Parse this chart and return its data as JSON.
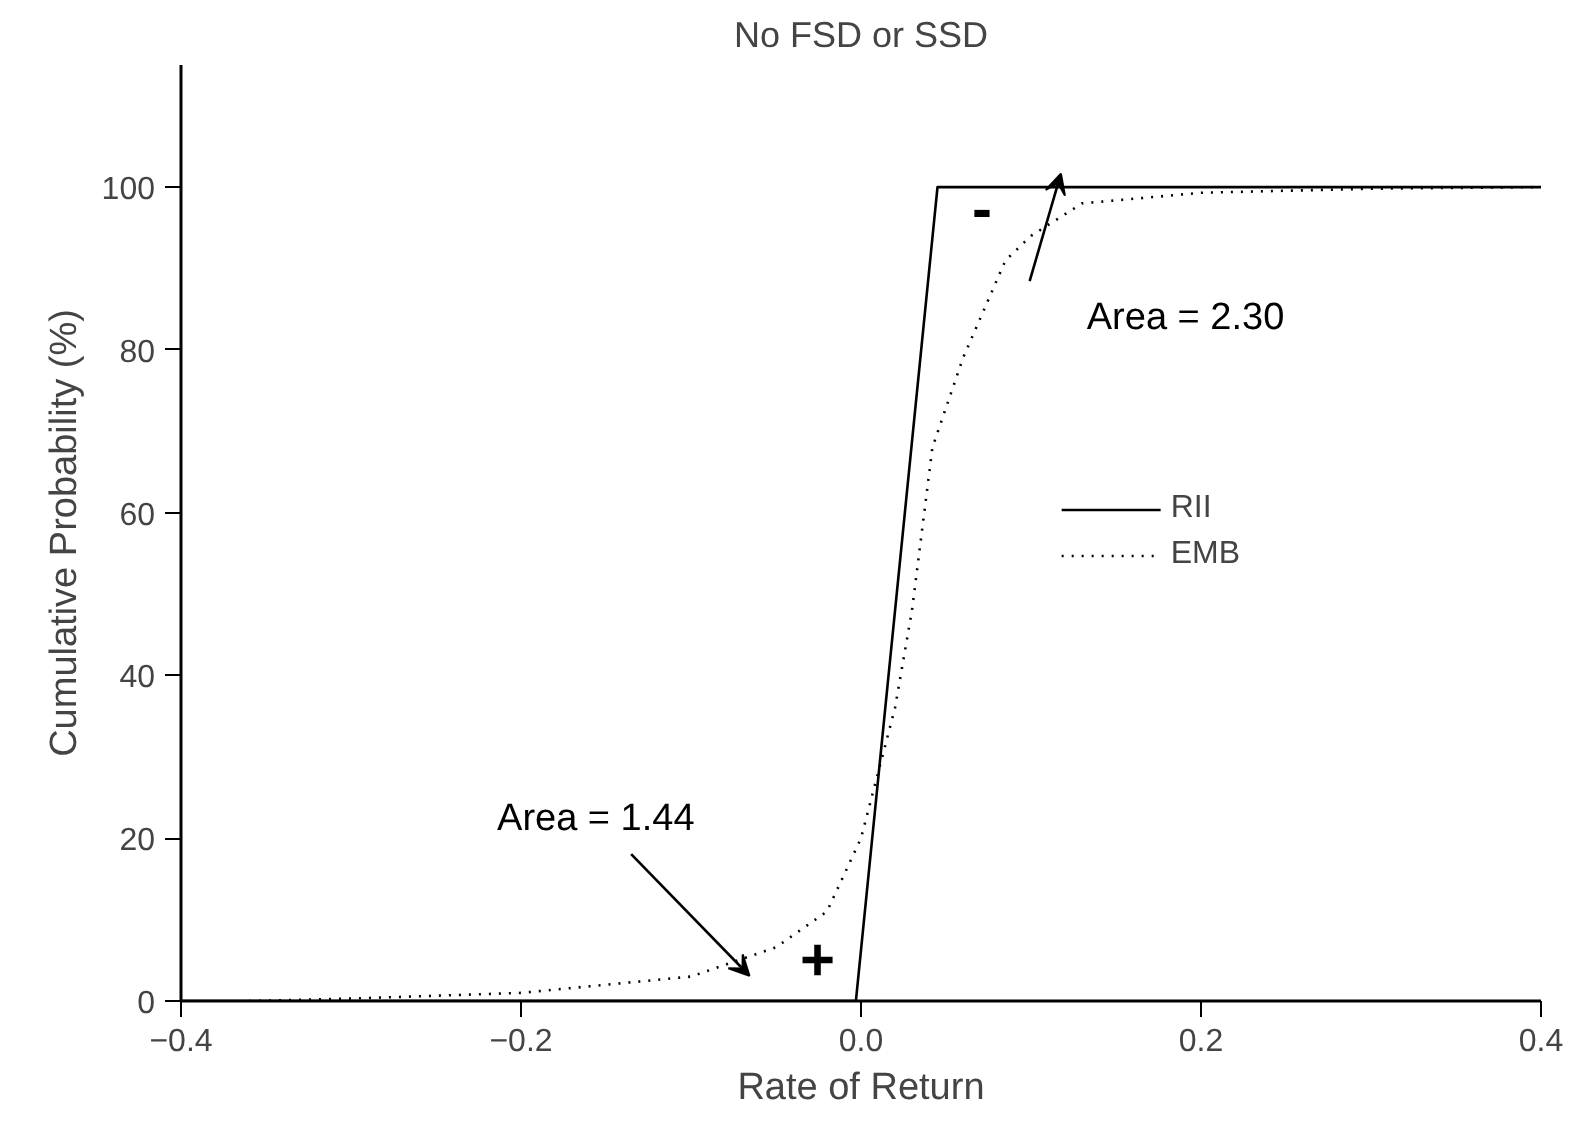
{
  "chart_data": {
    "type": "line",
    "title": "No FSD or SSD",
    "xlabel": "Rate of Return",
    "ylabel": "Cumulative Probability (%)",
    "xlim": [
      -0.4,
      0.4
    ],
    "ylim": [
      0,
      115
    ],
    "xticks": [
      -0.4,
      -0.2,
      {
        "value": 0,
        "label": "0.0"
      },
      0.2,
      0.4
    ],
    "yticks": [
      0,
      20,
      40,
      60,
      80,
      100
    ],
    "grid": false,
    "legend": "right",
    "series": [
      {
        "name": "RII",
        "color": "#000000",
        "line_style": "solid",
        "x": [
          -0.4,
          -0.003,
          0.045,
          0.4
        ],
        "values": [
          0,
          0,
          100,
          100
        ]
      },
      {
        "name": "EMB",
        "color": "#000000",
        "line_style": "dotted",
        "x": [
          -0.36,
          -0.3,
          -0.2,
          -0.1,
          -0.05,
          -0.02,
          0,
          0.02,
          0.03,
          0.042,
          0.06,
          0.085,
          0.1,
          0.13,
          0.2,
          0.3,
          0.4
        ],
        "values": [
          0,
          0.3,
          1,
          3,
          6.6,
          11,
          20,
          36,
          48,
          68,
          79,
          91,
          94,
          98,
          99.3,
          99.8,
          100
        ]
      }
    ],
    "annotations": [
      "Area = 2.30",
      "Area = 1.44",
      "-",
      "+"
    ]
  }
}
